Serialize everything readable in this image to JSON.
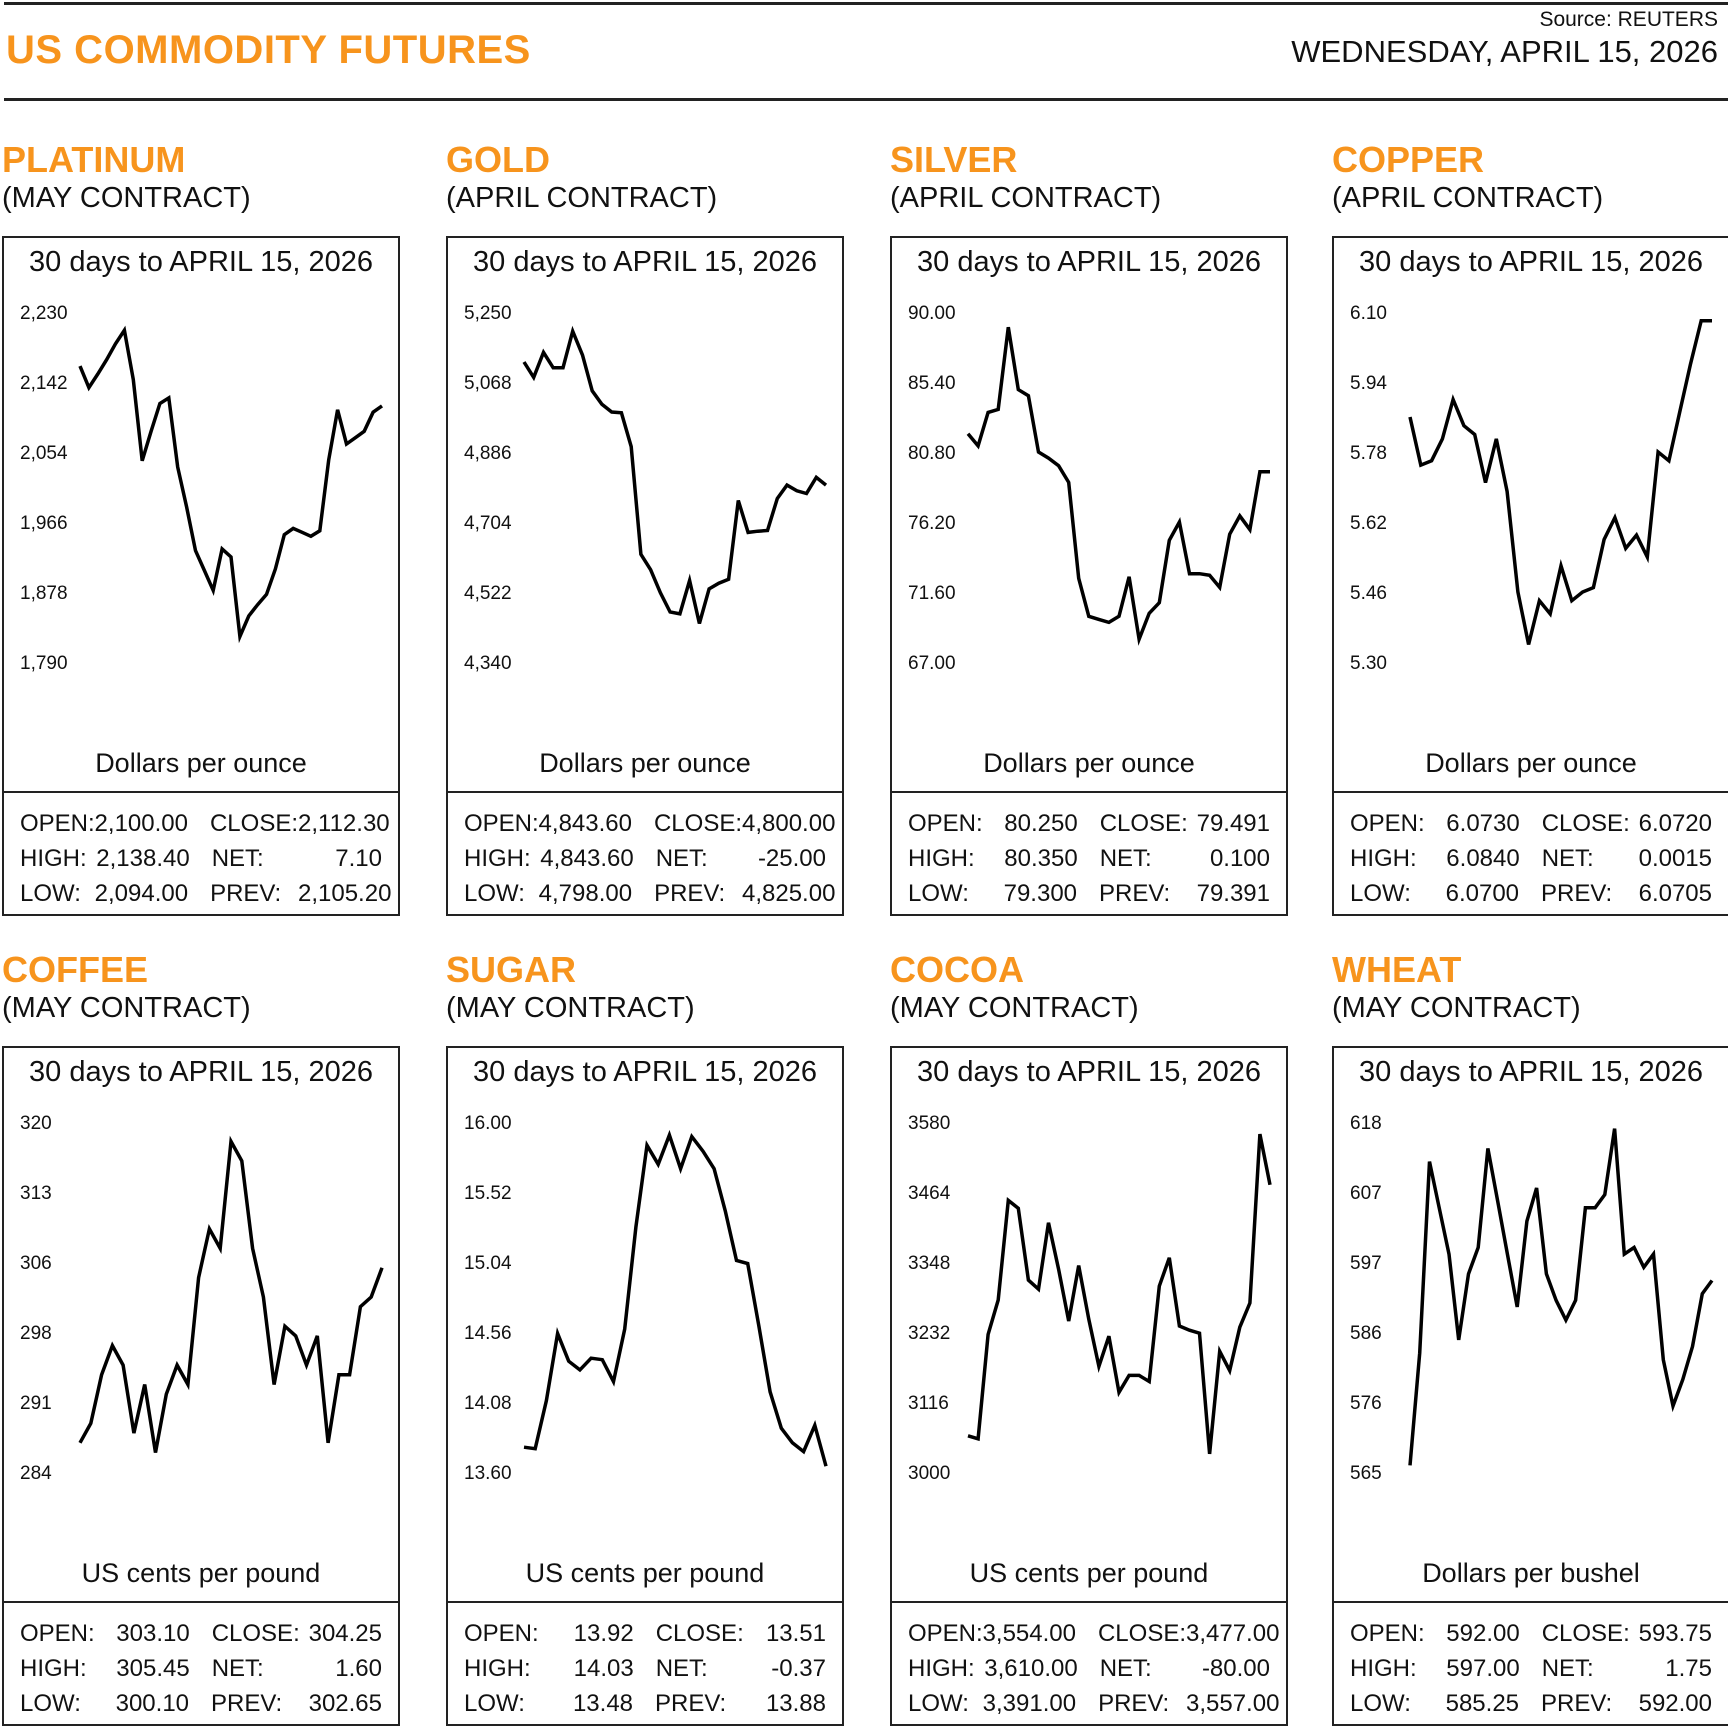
{
  "header": {
    "title": "US COMMODITY FUTURES",
    "source": "Source: REUTERS",
    "date": "WEDNESDAY, APRIL 15, 2026"
  },
  "accent_color": "#f7941d",
  "chart_data": [
    {
      "type": "line",
      "name": "PLATINUM",
      "contract": "(MAY CONTRACT)",
      "title": "30 days to APRIL 15, 2026",
      "ylabel": "Dollars per ounce",
      "yticks": [
        "2,230",
        "2,142",
        "2,054",
        "1,966",
        "1,878",
        "1,790"
      ],
      "ylim": [
        1790,
        2230
      ],
      "values": [
        2162,
        2135,
        2152,
        2170,
        2190,
        2207,
        2145,
        2043,
        2080,
        2115,
        2122,
        2035,
        1985,
        1930,
        1905,
        1880,
        1932,
        1922,
        1822,
        1848,
        1862,
        1875,
        1907,
        1950,
        1958,
        1953,
        1948,
        1955,
        2044,
        2107,
        2064,
        2072,
        2080,
        2104,
        2112
      ],
      "stats": {
        "open": "2,100.00",
        "high": "2,138.40",
        "low": "2,094.00",
        "close": "2,112.30",
        "net": "7.10",
        "prev": "2,105.20"
      }
    },
    {
      "type": "line",
      "name": "GOLD",
      "contract": "(APRIL CONTRACT)",
      "title": "30 days to APRIL 15, 2026",
      "ylabel": "Dollars per ounce",
      "yticks": [
        "5,250",
        "5,068",
        "4,886",
        "4,704",
        "4,522",
        "4,340"
      ],
      "ylim": [
        4340,
        5250
      ],
      "values": [
        5120,
        5080,
        5145,
        5105,
        5105,
        5200,
        5138,
        5045,
        5010,
        4990,
        4988,
        4900,
        4620,
        4580,
        4520,
        4470,
        4465,
        4552,
        4440,
        4530,
        4545,
        4555,
        4760,
        4677,
        4680,
        4682,
        4765,
        4800,
        4785,
        4778,
        4820,
        4800
      ],
      "stats": {
        "open": "4,843.60",
        "high": "4,843.60",
        "low": "4,798.00",
        "close": "4,800.00",
        "net": "-25.00",
        "prev": "4,825.00"
      }
    },
    {
      "type": "line",
      "name": "SILVER",
      "contract": "(APRIL CONTRACT)",
      "title": "30 days to APRIL 15, 2026",
      "ylabel": "Dollars per ounce",
      "yticks": [
        "90.00",
        "85.40",
        "80.80",
        "76.20",
        "71.60",
        "67.00"
      ],
      "ylim": [
        67.0,
        90.0
      ],
      "values": [
        82.0,
        81.2,
        83.4,
        83.6,
        89.0,
        84.9,
        84.5,
        80.8,
        80.4,
        79.9,
        78.8,
        72.5,
        70.0,
        69.8,
        69.6,
        70.0,
        72.6,
        68.5,
        70.2,
        70.9,
        75.0,
        76.2,
        72.8,
        72.8,
        72.7,
        71.9,
        75.4,
        76.6,
        75.7,
        79.5,
        79.5
      ],
      "stats": {
        "open": "80.250",
        "high": "80.350",
        "low": "79.300",
        "close": "79.491",
        "net": "0.100",
        "prev": "79.391"
      }
    },
    {
      "type": "line",
      "name": "COPPER",
      "contract": "(APRIL CONTRACT)",
      "title": "30 days to APRIL 15, 2026",
      "ylabel": "Dollars per ounce",
      "yticks": [
        "6.10",
        "5.94",
        "5.78",
        "5.62",
        "5.46",
        "5.30"
      ],
      "ylim": [
        5.3,
        6.1
      ],
      "values": [
        5.86,
        5.75,
        5.76,
        5.81,
        5.9,
        5.84,
        5.82,
        5.71,
        5.81,
        5.69,
        5.46,
        5.34,
        5.44,
        5.41,
        5.52,
        5.44,
        5.46,
        5.47,
        5.58,
        5.63,
        5.56,
        5.59,
        5.54,
        5.78,
        5.76,
        5.87,
        5.98,
        6.08,
        6.08
      ],
      "stats": {
        "open": "6.0730",
        "high": "6.0840",
        "low": "6.0700",
        "close": "6.0720",
        "net": "0.0015",
        "prev": "6.0705"
      }
    },
    {
      "type": "line",
      "name": "COFFEE",
      "contract": "(MAY CONTRACT)",
      "title": "30 days to APRIL 15, 2026",
      "ylabel": "US cents per pound",
      "yticks": [
        "320",
        "313",
        "306",
        "298",
        "291",
        "284"
      ],
      "ylim": [
        284,
        320
      ],
      "values": [
        287,
        289,
        294,
        297,
        295,
        288,
        293,
        286,
        292,
        295,
        293,
        304,
        309,
        307,
        318,
        316,
        307,
        302,
        293,
        299,
        298,
        295,
        298,
        287,
        294,
        294,
        301,
        302,
        305
      ],
      "stats": {
        "open": "303.10",
        "high": "305.45",
        "low": "300.10",
        "close": "304.25",
        "net": "1.60",
        "prev": "302.65"
      }
    },
    {
      "type": "line",
      "name": "SUGAR",
      "contract": "(MAY CONTRACT)",
      "title": "30 days to APRIL 15, 2026",
      "ylabel": "US cents per pound",
      "yticks": [
        "16.00",
        "15.52",
        "15.04",
        "14.56",
        "14.08",
        "13.60"
      ],
      "ylim": [
        13.6,
        16.0
      ],
      "values": [
        13.77,
        13.76,
        14.09,
        14.55,
        14.36,
        14.3,
        14.38,
        14.37,
        14.22,
        14.58,
        15.28,
        15.84,
        15.71,
        15.91,
        15.68,
        15.9,
        15.8,
        15.68,
        15.39,
        15.05,
        15.03,
        14.6,
        14.15,
        13.9,
        13.8,
        13.74,
        13.92,
        13.64
      ],
      "stats": {
        "open": "13.92",
        "high": "14.03",
        "low": "13.48",
        "close": "13.51",
        "net": "-0.37",
        "prev": "13.88"
      }
    },
    {
      "type": "line",
      "name": "COCOA",
      "contract": "(MAY CONTRACT)",
      "title": "30 days to APRIL 15, 2026",
      "ylabel": "US cents per pound",
      "yticks": [
        "3580",
        "3464",
        "3348",
        "3232",
        "3116",
        "3000"
      ],
      "ylim": [
        3000,
        3580
      ],
      "values": [
        3060,
        3055,
        3228,
        3285,
        3450,
        3437,
        3318,
        3303,
        3413,
        3336,
        3250,
        3342,
        3253,
        3175,
        3225,
        3132,
        3160,
        3160,
        3150,
        3308,
        3355,
        3242,
        3235,
        3230,
        3030,
        3200,
        3168,
        3240,
        3280,
        3560,
        3476
      ],
      "stats": {
        "open": "3,554.00",
        "high": "3,610.00",
        "low": "3,391.00",
        "close": "3,477.00",
        "net": "-80.00",
        "prev": "3,557.00"
      }
    },
    {
      "type": "line",
      "name": "WHEAT",
      "contract": "(MAY CONTRACT)",
      "title": "30 days to APRIL 15, 2026",
      "ylabel": "Dollars per bushel",
      "yticks": [
        "618",
        "607",
        "597",
        "586",
        "576",
        "565"
      ],
      "ylim": [
        565,
        618
      ],
      "values": [
        566,
        583,
        612,
        605,
        598,
        585,
        595,
        599,
        614,
        606,
        598,
        590,
        603,
        608,
        595,
        591,
        588,
        591,
        605,
        605,
        607,
        617,
        598,
        599,
        596,
        598,
        582,
        575,
        579,
        584,
        592,
        594
      ],
      "stats": {
        "open": "592.00",
        "high": "597.00",
        "low": "585.25",
        "close": "593.75",
        "net": "1.75",
        "prev": "592.00"
      }
    }
  ],
  "labels": {
    "open": "OPEN:",
    "high": "HIGH:",
    "low": "LOW:",
    "close": "CLOSE:",
    "net": "NET:",
    "prev": "PREV:"
  }
}
